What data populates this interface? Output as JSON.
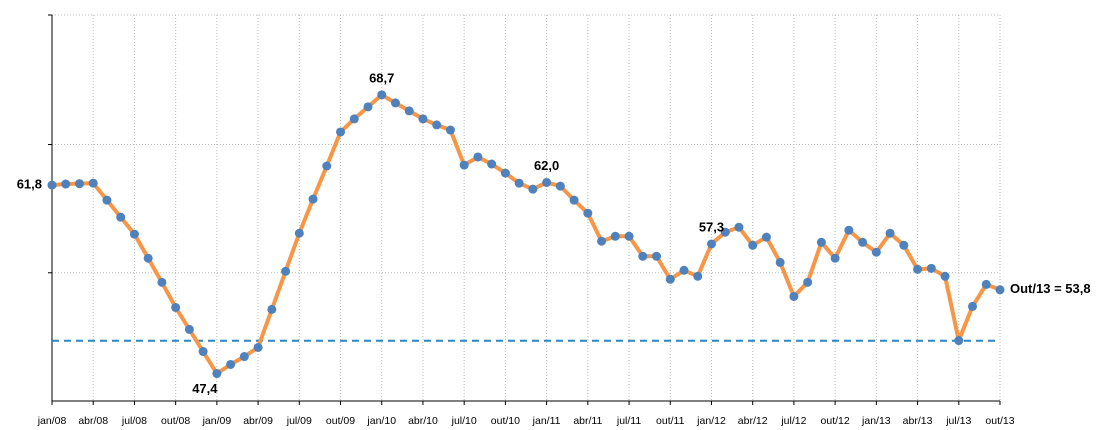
{
  "chart_data": {
    "type": "line",
    "categories": [
      "jan/08",
      null,
      null,
      "abr/08",
      null,
      null,
      "jul/08",
      null,
      null,
      "out/08",
      null,
      null,
      "jan/09",
      null,
      null,
      "abr/09",
      null,
      null,
      "jul/09",
      null,
      null,
      "out/09",
      null,
      null,
      "jan/10",
      null,
      null,
      "abr/10",
      null,
      null,
      "jul/10",
      null,
      null,
      "out/10",
      null,
      null,
      "jan/11",
      null,
      null,
      "abr/11",
      null,
      null,
      "jul/11",
      null,
      null,
      "out/11",
      null,
      null,
      "jan/12",
      null,
      null,
      "abr/12",
      null,
      null,
      "jul/12",
      null,
      null,
      "out/12",
      null,
      null,
      "jan/13",
      null,
      null,
      "abr/13",
      null,
      null,
      "jul/13",
      null,
      null,
      "out/13"
    ],
    "values": [
      61.8,
      61.88,
      61.91,
      61.95,
      60.65,
      59.35,
      58.05,
      56.21,
      54.37,
      52.45,
      50.77,
      49.08,
      47.4,
      48.09,
      48.7,
      49.39,
      52.3,
      55.21,
      58.12,
      60.73,
      63.26,
      65.86,
      66.86,
      67.78,
      68.7,
      68.08,
      67.47,
      66.86,
      66.4,
      66.01,
      63.33,
      63.95,
      63.41,
      62.72,
      61.95,
      61.49,
      62.0,
      61.72,
      60.65,
      59.65,
      57.51,
      57.89,
      57.89,
      56.36,
      56.36,
      54.6,
      55.29,
      54.83,
      57.3,
      58.2,
      58.58,
      57.2,
      57.82,
      55.89,
      53.29,
      54.37,
      57.43,
      56.21,
      58.35,
      57.43,
      56.67,
      58.12,
      57.2,
      55.36,
      55.44,
      54.83,
      49.92,
      52.53,
      54.21,
      53.8
    ],
    "value_labels": [
      "61,8",
      null,
      null,
      null,
      null,
      null,
      null,
      null,
      null,
      null,
      null,
      null,
      "47,4",
      null,
      null,
      null,
      null,
      null,
      null,
      null,
      null,
      null,
      null,
      null,
      "68,7",
      null,
      null,
      null,
      null,
      null,
      null,
      null,
      null,
      null,
      null,
      null,
      "62,0",
      null,
      null,
      null,
      null,
      null,
      null,
      null,
      null,
      null,
      null,
      null,
      "57,3",
      null,
      null,
      null,
      null,
      null,
      null,
      null,
      null,
      null,
      null,
      null,
      null,
      null,
      null,
      null,
      null,
      null,
      null,
      null,
      null,
      "Out/13 = 53,8"
    ],
    "color": "#f79646",
    "marker_color": "#4f81bd",
    "ylim": [
      45.3,
      74.8
    ],
    "ygrid": [
      55.1,
      64.9,
      74.8
    ],
    "reference_line": 49.9,
    "reference_color": "#2e86c1"
  }
}
